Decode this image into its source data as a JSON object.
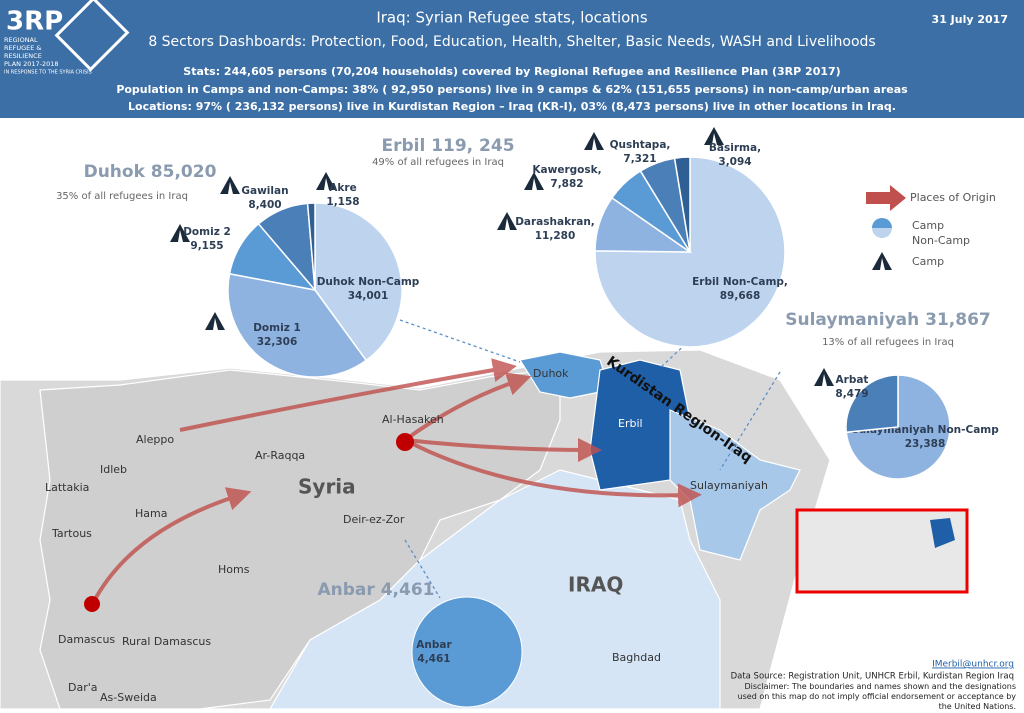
{
  "header": {
    "logo": "3RP",
    "logo_lines": [
      "REGIONAL",
      "REFUGEE &",
      "RESILIENCE",
      "PLAN 2017-2018",
      "IN RESPONSE TO THE SYRIA CRISIS"
    ],
    "title": "Iraq: Syrian Refugee stats, locations",
    "subtitle": "8 Sectors Dashboards: Protection, Food, Education, Health, Shelter, Basic Needs, WASH and Livelihoods",
    "date": "31 July 2017",
    "lines": [
      "Stats: 244,605 persons (70,204 households) covered by Regional Refugee and Resilience Plan (3RP 2017)",
      "Population in Camps and non-Camps: 38% ( 92,950 persons) live in 9 camps & 62% (151,655 persons) in non-camp/urban areas",
      "Locations: 97% ( 236,132 persons) live in Kurdistan Region – Iraq (KR-I), 03% (8,473 persons) live in other locations in Iraq."
    ]
  },
  "pies": [
    {
      "title": "Duhok 85,020",
      "subtitle": "35% of all refugees in Iraq",
      "slices": [
        {
          "name": "Duhok Non-Camp",
          "value": 34001,
          "label": "34,001",
          "color": "#bdd3ee"
        },
        {
          "name": "Domiz 1",
          "value": 32306,
          "label": "32,306",
          "color": "#8fb3e0"
        },
        {
          "name": "Domiz 2",
          "value": 9155,
          "label": "9,155",
          "color": "#5b9bd5"
        },
        {
          "name": "Gawilan",
          "value": 8400,
          "label": "8,400",
          "color": "#4a7fb8"
        },
        {
          "name": "Akre",
          "value": 1158,
          "label": "1,158",
          "color": "#2f5f93"
        }
      ]
    },
    {
      "title": "Erbil 119, 245",
      "subtitle": "49% of all refugees in Iraq",
      "slices": [
        {
          "name": "Erbil Non-Camp,",
          "value": 89668,
          "label": "89,668",
          "color": "#bdd3ee"
        },
        {
          "name": "Darashakran,",
          "value": 11280,
          "label": "11,280",
          "color": "#8fb3e0"
        },
        {
          "name": "Kawergosk,",
          "value": 7882,
          "label": "7,882",
          "color": "#5b9bd5"
        },
        {
          "name": "Qushtapa,",
          "value": 7321,
          "label": "7,321",
          "color": "#4a7fb8"
        },
        {
          "name": "Basirma,",
          "value": 3094,
          "label": "3,094",
          "color": "#2f5f93"
        }
      ]
    },
    {
      "title": "Sulaymaniyah 31,867",
      "subtitle": "13% of all refugees in Iraq",
      "slices": [
        {
          "name": "Sulaymaniyah Non-Camp",
          "value": 23388,
          "label": "23,388",
          "color": "#8fb3e0"
        },
        {
          "name": "Arbat",
          "value": 8479,
          "label": "8,479",
          "color": "#4a7fb8"
        }
      ]
    },
    {
      "title": "Anbar 4,461",
      "slices": [
        {
          "name": "Anbar",
          "value": 4461,
          "label": "4,461",
          "color": "#5b9bd5"
        }
      ]
    }
  ],
  "legend": {
    "origin": "Places of Origin",
    "camp": "Camp",
    "non_camp": "Non-Camp",
    "camp_icon": "Camp"
  },
  "map_labels": {
    "duhok": "Duhok",
    "erbil": "Erbil",
    "sulaymaniyah": "Sulaymaniyah",
    "kri": "Kurdistan Region-Iraq",
    "hasakeh": "Al-Hasakeh",
    "aleppo": "Aleppo",
    "raqqa": "Ar-Raqqa",
    "idleb": "Idleb",
    "lattakia": "Lattakia",
    "hama": "Hama",
    "tartous": "Tartous",
    "syria": "Syria",
    "deir": "Deir-ez-Zor",
    "homs": "Homs",
    "iraq": "IRAQ",
    "damascus": "Damascus",
    "rural_damascus": "Rural Damascus",
    "daraa": "Dar'a",
    "sweida": "As-Sweida",
    "baghdad": "Baghdad"
  },
  "footer": {
    "email": "IMerbil@unhcr.org",
    "source": "Data Source: Registration Unit, UNHCR Erbil, Kurdistan Region Iraq",
    "disclaimer": "Disclaimer: The boundaries and names shown and the designations used on this map do not imply official endorsement or acceptance by the United Nations."
  }
}
